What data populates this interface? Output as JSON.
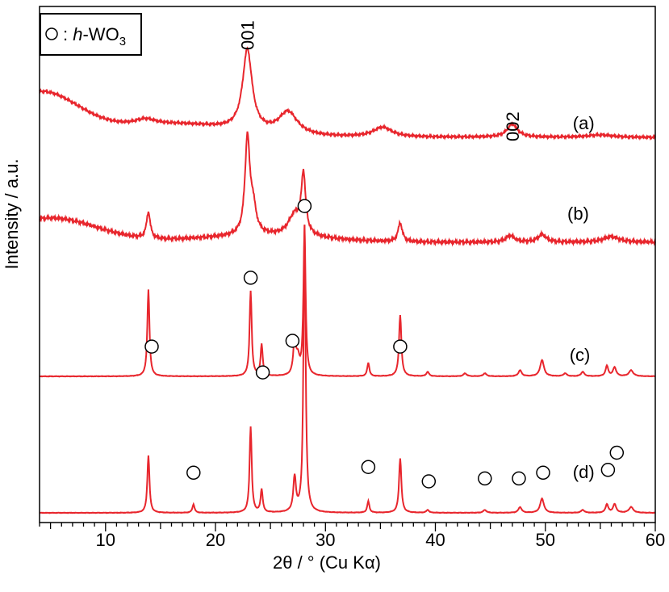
{
  "chart_data": {
    "type": "line",
    "xlabel": "2θ / ° (Cu Kα)",
    "ylabel": "Intensity / a.u.",
    "xlim": [
      4,
      60
    ],
    "x_ticks": [
      "10",
      "20",
      "30",
      "40",
      "50",
      "60"
    ],
    "grid": false,
    "legend": {
      "marker": "○",
      "separator": " : ",
      "label_prefix": "h",
      "label_main": "-WO",
      "label_sub": "3",
      "placement": "top-left"
    },
    "peak_labels": [
      {
        "text": "001",
        "x": 22.9,
        "series": "(a)"
      },
      {
        "text": "002",
        "x": 47.0,
        "series": "(a)"
      }
    ],
    "series_color": "#e8262d",
    "series": [
      {
        "name": "(a)",
        "label_x": 52.5,
        "peaks": [
          {
            "x": 22.9,
            "height": 1.0,
            "width": 0.9
          },
          {
            "x": 26.6,
            "height": 0.28,
            "width": 1.8
          },
          {
            "x": 35.2,
            "height": 0.12,
            "width": 1.8
          },
          {
            "x": 47.0,
            "height": 0.16,
            "width": 1.0
          },
          {
            "x": 13.6,
            "height": 0.07,
            "width": 2.0
          },
          {
            "x": 55.0,
            "height": 0.03,
            "width": 2.5
          }
        ]
      },
      {
        "name": "(b)",
        "label_x": 52.0,
        "peaks": [
          {
            "x": 13.9,
            "height": 0.28,
            "width": 0.35
          },
          {
            "x": 22.9,
            "height": 1.0,
            "width": 0.45
          },
          {
            "x": 23.4,
            "height": 0.28,
            "width": 0.6
          },
          {
            "x": 27.2,
            "height": 0.22,
            "width": 1.2
          },
          {
            "x": 28.0,
            "height": 0.62,
            "width": 0.4
          },
          {
            "x": 36.8,
            "height": 0.2,
            "width": 0.4
          },
          {
            "x": 46.8,
            "height": 0.07,
            "width": 0.8
          },
          {
            "x": 49.7,
            "height": 0.08,
            "width": 0.8
          },
          {
            "x": 56.0,
            "height": 0.06,
            "width": 1.5
          }
        ]
      },
      {
        "name": "(c)",
        "label_x": 52.2,
        "peaks": [
          {
            "x": 13.9,
            "height": 0.58,
            "width": 0.2
          },
          {
            "x": 23.2,
            "height": 0.57,
            "width": 0.2
          },
          {
            "x": 24.2,
            "height": 0.21,
            "width": 0.2
          },
          {
            "x": 27.2,
            "height": 0.24,
            "width": 0.25
          },
          {
            "x": 27.5,
            "height": 0.1,
            "width": 0.3
          },
          {
            "x": 28.1,
            "height": 1.0,
            "width": 0.2
          },
          {
            "x": 33.9,
            "height": 0.09,
            "width": 0.2
          },
          {
            "x": 36.8,
            "height": 0.41,
            "width": 0.22
          },
          {
            "x": 39.3,
            "height": 0.03,
            "width": 0.25
          },
          {
            "x": 42.7,
            "height": 0.02,
            "width": 0.3
          },
          {
            "x": 44.5,
            "height": 0.02,
            "width": 0.3
          },
          {
            "x": 47.7,
            "height": 0.04,
            "width": 0.3
          },
          {
            "x": 49.7,
            "height": 0.11,
            "width": 0.35
          },
          {
            "x": 51.8,
            "height": 0.02,
            "width": 0.3
          },
          {
            "x": 53.4,
            "height": 0.03,
            "width": 0.3
          },
          {
            "x": 55.6,
            "height": 0.07,
            "width": 0.25
          },
          {
            "x": 56.3,
            "height": 0.06,
            "width": 0.3
          },
          {
            "x": 57.8,
            "height": 0.04,
            "width": 0.4
          }
        ]
      },
      {
        "name": "(d)",
        "label_x": 52.5,
        "peaks": [
          {
            "x": 13.9,
            "height": 0.2,
            "width": 0.2
          },
          {
            "x": 18.0,
            "height": 0.03,
            "width": 0.2
          },
          {
            "x": 23.2,
            "height": 0.3,
            "width": 0.2
          },
          {
            "x": 24.2,
            "height": 0.08,
            "width": 0.2
          },
          {
            "x": 27.2,
            "height": 0.12,
            "width": 0.25
          },
          {
            "x": 28.1,
            "height": 1.0,
            "width": 0.2
          },
          {
            "x": 33.9,
            "height": 0.04,
            "width": 0.2
          },
          {
            "x": 36.8,
            "height": 0.19,
            "width": 0.22
          },
          {
            "x": 39.3,
            "height": 0.01,
            "width": 0.25
          },
          {
            "x": 44.5,
            "height": 0.01,
            "width": 0.3
          },
          {
            "x": 47.7,
            "height": 0.02,
            "width": 0.3
          },
          {
            "x": 49.7,
            "height": 0.05,
            "width": 0.35
          },
          {
            "x": 53.4,
            "height": 0.01,
            "width": 0.3
          },
          {
            "x": 55.6,
            "height": 0.03,
            "width": 0.25
          },
          {
            "x": 56.3,
            "height": 0.03,
            "width": 0.3
          },
          {
            "x": 57.8,
            "height": 0.02,
            "width": 0.4
          }
        ]
      }
    ],
    "reference_markers": [
      {
        "x": 14.2,
        "level": 0.58
      },
      {
        "x": 18.0,
        "level": 0.14
      },
      {
        "x": 23.2,
        "level": 0.82
      },
      {
        "x": 24.3,
        "level": 0.49
      },
      {
        "x": 27.0,
        "level": 0.6
      },
      {
        "x": 28.1,
        "level": 1.07
      },
      {
        "x": 33.9,
        "level": 0.16
      },
      {
        "x": 36.8,
        "level": 0.58
      },
      {
        "x": 39.4,
        "level": 0.11
      },
      {
        "x": 44.5,
        "level": 0.12
      },
      {
        "x": 47.6,
        "level": 0.12
      },
      {
        "x": 49.8,
        "level": 0.14
      },
      {
        "x": 55.7,
        "level": 0.15
      },
      {
        "x": 56.5,
        "level": 0.21
      }
    ]
  }
}
